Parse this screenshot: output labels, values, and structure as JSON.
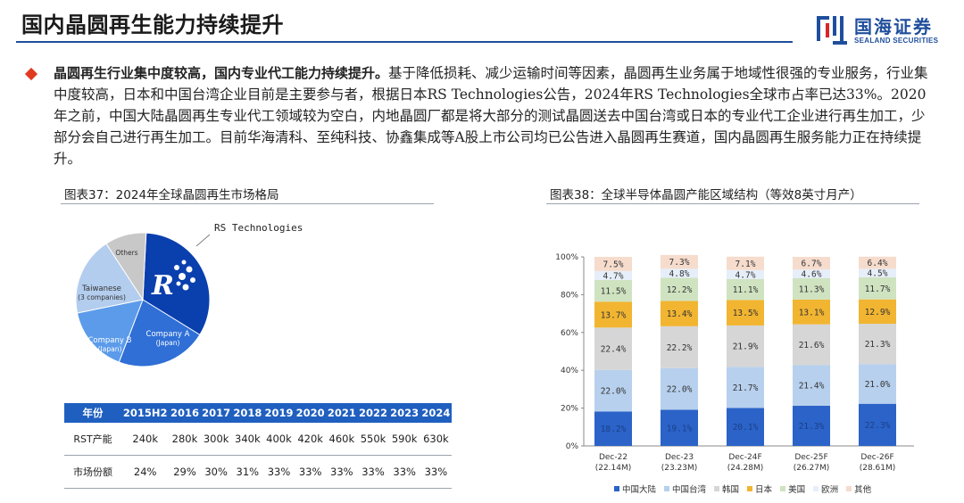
{
  "page": {
    "title": "国内晶圆再生能力持续提升",
    "logo_cn": "国海证券",
    "logo_en": "SEALAND SECURITIES"
  },
  "body": {
    "lead": "晶圆再生行业集中度较高，国内专业代工能力持续提升。",
    "text": "基于降低损耗、减少运输时间等因素，晶圆再生业务属于地域性很强的专业服务，行业集中度较高，日本和中国台湾企业目前是主要参与者，根据日本RS Technologies公告，2024年RS Technologies全球市占率已达33%。2020年之前，中国大陆晶圆再生专业代工领域较为空白，内地晶圆厂都是将大部分的测试晶圆送去中国台湾或日本的专业代工企业进行再生加工，少部分会自己进行再生加工。目前华海清科、至纯科技、协鑫集成等A股上市公司均已公告进入晶圆再生赛道，国内晶圆再生服务能力正在持续提升。"
  },
  "fig37": {
    "title": "图表37：2024年全球晶圆再生市场格局",
    "pie_labels": {
      "rs": "RS Technologies",
      "company_a": [
        "Company A",
        "(Japan)"
      ],
      "company_b": [
        "Company B",
        "(Japan)"
      ],
      "taiwanese": [
        "Taiwanese",
        "(3 companies)"
      ],
      "others": "Others"
    },
    "table": {
      "header": [
        "年份",
        "2015H2",
        "2016",
        "2017",
        "2018",
        "2019",
        "2020",
        "2021",
        "2022",
        "2023",
        "2024"
      ],
      "rows": [
        [
          "RST产能",
          "240k",
          "280k",
          "300k",
          "340k",
          "400k",
          "420k",
          "460k",
          "550k",
          "590k",
          "630k"
        ],
        [
          "市场份额",
          "24%",
          "29%",
          "30%",
          "31%",
          "33%",
          "33%",
          "33%",
          "33%",
          "33%",
          "33%"
        ]
      ]
    }
  },
  "fig38": {
    "title": "图表38：全球半导体晶圆产能区域结构（等效8英寸月产）"
  },
  "chart_data": [
    {
      "type": "pie",
      "categories": [
        "RS Technologies",
        "Company A (Japan)",
        "Company B (Japan)",
        "Taiwanese (3 companies)",
        "Others"
      ],
      "values": [
        33,
        22,
        16,
        19,
        10
      ],
      "colors": [
        "#0a3fae",
        "#2f6fd6",
        "#5b9bea",
        "#b3cdee",
        "#c8c8c8"
      ]
    },
    {
      "type": "bar",
      "stacked": true,
      "categories": [
        "Dec-22",
        "Dec-23",
        "Dec-24F",
        "Dec-25F",
        "Dec-26F"
      ],
      "category_sublabels": [
        "(22.14M)",
        "(23.23M)",
        "(24.28M)",
        "(26.27M)",
        "(28.61M)"
      ],
      "ylim": [
        0,
        100
      ],
      "yticks": [
        "0%",
        "20%",
        "40%",
        "60%",
        "80%",
        "100%"
      ],
      "legend_position": "bottom",
      "series": [
        {
          "name": "中国大陆",
          "color": "#2b63c8",
          "labels": [
            "18.2%",
            "19.1%",
            "20.1%",
            "21.3%",
            "22.3%"
          ],
          "values": [
            18.2,
            19.1,
            20.1,
            21.3,
            22.3
          ]
        },
        {
          "name": "中国台湾",
          "color": "#b7d0ee",
          "labels": [
            "22.0%",
            "22.0%",
            "21.7%",
            "21.4%",
            "21.0%"
          ],
          "values": [
            22.0,
            22.0,
            21.7,
            21.4,
            21.0
          ]
        },
        {
          "name": "韩国",
          "color": "#d6d6d6",
          "labels": [
            "22.4%",
            "22.2%",
            "21.9%",
            "21.6%",
            "21.3%"
          ],
          "values": [
            22.4,
            22.2,
            21.9,
            21.6,
            21.3
          ]
        },
        {
          "name": "日本",
          "color": "#f2b531",
          "labels": [
            "13.7%",
            "13.4%",
            "13.5%",
            "13.1%",
            "12.9%"
          ],
          "values": [
            13.7,
            13.4,
            13.5,
            13.1,
            12.9
          ]
        },
        {
          "name": "美国",
          "color": "#cfe3c1",
          "labels": [
            "11.5%",
            "12.2%",
            "11.1%",
            "11.3%",
            "11.7%"
          ],
          "values": [
            11.5,
            12.2,
            11.1,
            11.3,
            11.7
          ]
        },
        {
          "name": "欧洲",
          "color": "#e6eef9",
          "labels": [
            "4.7%",
            "4.8%",
            "4.7%",
            "4.6%",
            "4.5%"
          ],
          "values": [
            4.7,
            4.8,
            4.7,
            4.6,
            4.5
          ]
        },
        {
          "name": "其他",
          "color": "#f6dccd",
          "labels": [
            "7.5%",
            "7.3%",
            "7.1%",
            "6.7%",
            "6.4%"
          ],
          "values": [
            7.5,
            7.3,
            7.1,
            6.7,
            6.4
          ]
        }
      ]
    }
  ]
}
